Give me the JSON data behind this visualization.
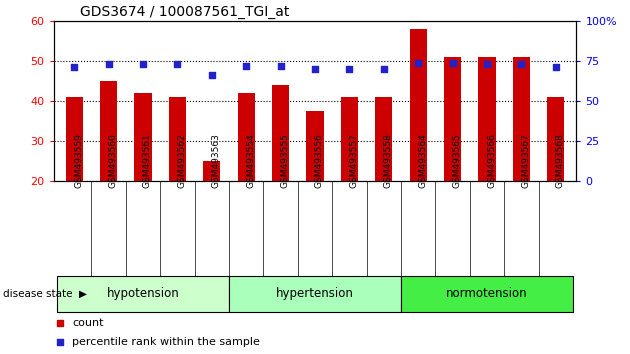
{
  "title": "GDS3674 / 100087561_TGI_at",
  "samples": [
    "GSM493559",
    "GSM493560",
    "GSM493561",
    "GSM493562",
    "GSM493563",
    "GSM493554",
    "GSM493555",
    "GSM493556",
    "GSM493557",
    "GSM493558",
    "GSM493564",
    "GSM493565",
    "GSM493566",
    "GSM493567",
    "GSM493568"
  ],
  "count_values": [
    41,
    45,
    42,
    41,
    25,
    42,
    44,
    37.5,
    41,
    41,
    58,
    51,
    51,
    51,
    41
  ],
  "percentile_values": [
    71,
    73,
    73,
    73,
    66,
    72,
    72,
    70,
    70,
    70,
    74,
    74,
    73,
    73,
    71
  ],
  "groups": [
    {
      "label": "hypotension",
      "start": 0,
      "end": 5,
      "color": "#ccffcc"
    },
    {
      "label": "hypertension",
      "start": 5,
      "end": 10,
      "color": "#aaffbb"
    },
    {
      "label": "normotension",
      "start": 10,
      "end": 15,
      "color": "#44ee44"
    }
  ],
  "ylim_left": [
    20,
    60
  ],
  "ylim_right": [
    0,
    100
  ],
  "yticks_left": [
    20,
    30,
    40,
    50,
    60
  ],
  "yticks_right": [
    0,
    25,
    50,
    75,
    100
  ],
  "bar_color": "#cc0000",
  "dot_color": "#2222cc",
  "bar_width": 0.5,
  "plot_bg_color": "#ffffff",
  "tick_area_color": "#cccccc",
  "xlabel_fontsize": 7,
  "title_fontsize": 10,
  "group_colors": [
    "#ccffcc",
    "#aaffbb",
    "#44ee44"
  ]
}
